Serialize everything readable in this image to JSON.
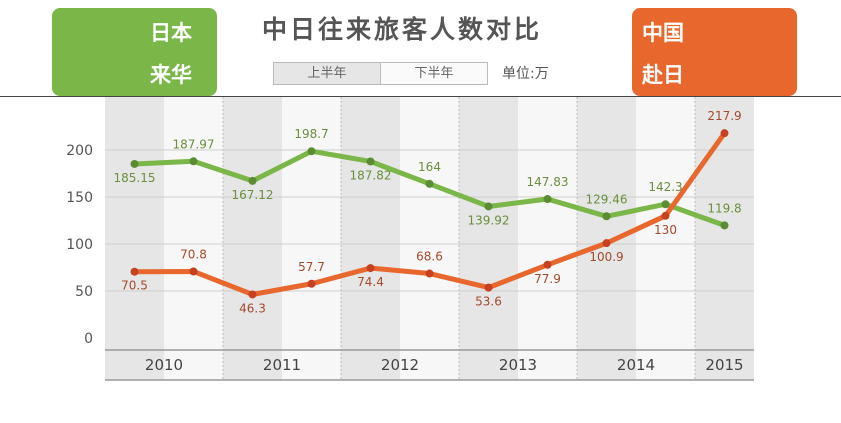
{
  "header": {
    "title": "中日往来旅客人数对比",
    "legend": {
      "h1": "上半年",
      "h2": "下半年"
    },
    "unit": "单位:万",
    "badge_left": {
      "line1": "日本",
      "line2": "来华",
      "color": "#7ab648",
      "icon": "panda-icon"
    },
    "badge_right": {
      "line1": "中国",
      "line2": "赴日",
      "color": "#e8672d",
      "icon": "lucky-cat-icon"
    }
  },
  "chart_data": {
    "type": "line",
    "title": "中日往来旅客人数对比",
    "unit": "万",
    "x": [
      "2010H1",
      "2010H2",
      "2011H1",
      "2011H2",
      "2012H1",
      "2012H2",
      "2013H1",
      "2013H2",
      "2014H1",
      "2014H2",
      "2015H1"
    ],
    "year_labels": [
      "2010",
      "2011",
      "2012",
      "2013",
      "2014",
      "2015"
    ],
    "series": [
      {
        "name": "日本来华",
        "color": "#7ab648",
        "values": [
          185.15,
          187.97,
          167.12,
          198.7,
          187.82,
          164,
          139.92,
          147.83,
          129.46,
          142.3,
          119.8
        ]
      },
      {
        "name": "中国赴日",
        "color": "#e8672d",
        "values": [
          70.5,
          70.8,
          46.3,
          57.7,
          74.4,
          68.6,
          53.6,
          77.9,
          100.9,
          130,
          217.9
        ]
      }
    ],
    "yticks": [
      0,
      50,
      100,
      150,
      200
    ],
    "ylim": [
      0,
      230
    ],
    "grid": true,
    "legend": [
      "上半年",
      "下半年"
    ]
  }
}
